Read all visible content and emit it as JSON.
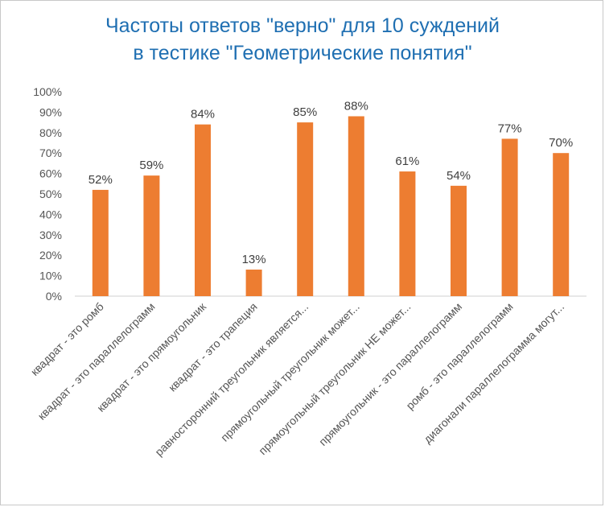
{
  "chart_data": {
    "type": "bar",
    "title_lines": [
      "Частоты ответов \"верно\" для 10 суждений",
      "в тестике \"Геометрические понятия\""
    ],
    "categories": [
      "квадрат - это ромб",
      "квадрат - это параллелограмм",
      "квадрат - это прямоугольник",
      "квадрат - это трапеция",
      "равносторонний треугольник является...",
      "прямоугольный треугольник может...",
      "прямоугольный треугольник НЕ может...",
      "прямоугольник - это параллелограмм",
      "ромб - это параллелограмм",
      "диагонали параллелограмма могут..."
    ],
    "values": [
      52,
      59,
      84,
      13,
      85,
      88,
      61,
      54,
      77,
      70
    ],
    "data_labels": [
      "52%",
      "59%",
      "84%",
      "13%",
      "85%",
      "88%",
      "61%",
      "54%",
      "77%",
      "70%"
    ],
    "y_ticks": [
      "0%",
      "10%",
      "20%",
      "30%",
      "40%",
      "50%",
      "60%",
      "70%",
      "80%",
      "90%",
      "100%"
    ],
    "ylim": [
      0,
      100
    ],
    "xlabel": "",
    "ylabel": "",
    "grid": false,
    "bar_color": "#ed7d31",
    "axis_color": "#d0d0d0"
  }
}
